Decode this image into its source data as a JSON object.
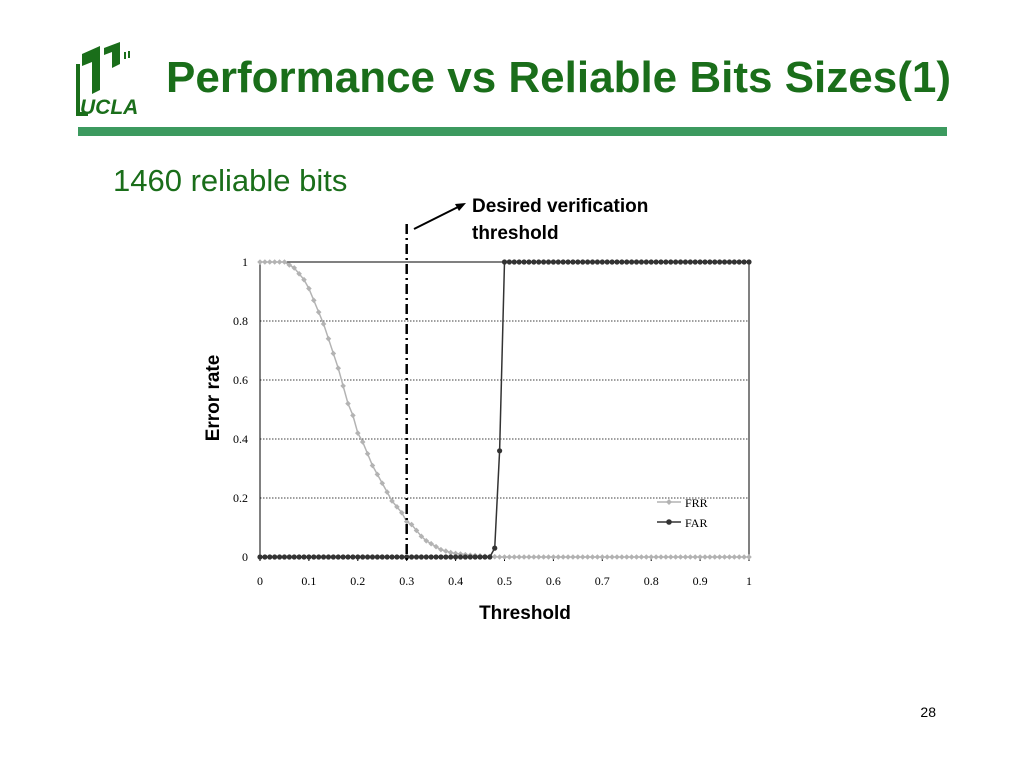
{
  "slide": {
    "title": "Performance vs Reliable Bits Sizes(1)",
    "subtitle": "1460 reliable bits",
    "page_number": "28",
    "logo_text": "UCLA",
    "colors": {
      "title": "#1a6e1a",
      "rule": "#3c9a5f",
      "logo": "#1a6e1a",
      "frr": "#b3b3b3",
      "far": "#333333"
    }
  },
  "chart_data": {
    "type": "line",
    "xlabel": "Threshold",
    "ylabel": "Error rate",
    "xlim": [
      0,
      1
    ],
    "ylim": [
      0,
      1
    ],
    "x_ticks": [
      "0",
      "0.1",
      "0.2",
      "0.3",
      "0.4",
      "0.5",
      "0.6",
      "0.7",
      "0.8",
      "0.9",
      "1"
    ],
    "y_ticks": [
      "0",
      "0.2",
      "0.4",
      "0.6",
      "0.8",
      "1"
    ],
    "grid": "horizontal dotted",
    "legend_position": "bottom-right",
    "annotation": {
      "text_lines": [
        "Desired verification",
        "threshold"
      ],
      "x": 0.3,
      "style": "dash-dot vertical line with arrow"
    },
    "x": [
      0,
      0.01,
      0.02,
      0.03,
      0.04,
      0.05,
      0.06,
      0.07,
      0.08,
      0.09,
      0.1,
      0.11,
      0.12,
      0.13,
      0.14,
      0.15,
      0.16,
      0.17,
      0.18,
      0.19,
      0.2,
      0.21,
      0.22,
      0.23,
      0.24,
      0.25,
      0.26,
      0.27,
      0.28,
      0.29,
      0.3,
      0.31,
      0.32,
      0.33,
      0.34,
      0.35,
      0.36,
      0.37,
      0.38,
      0.39,
      0.4,
      0.41,
      0.42,
      0.43,
      0.44,
      0.45,
      0.46,
      0.47,
      0.48,
      0.49,
      0.5,
      0.51,
      0.52,
      0.53,
      0.54,
      0.55,
      0.56,
      0.57,
      0.58,
      0.59,
      0.6,
      0.61,
      0.62,
      0.63,
      0.64,
      0.65,
      0.66,
      0.67,
      0.68,
      0.69,
      0.7,
      0.71,
      0.72,
      0.73,
      0.74,
      0.75,
      0.76,
      0.77,
      0.78,
      0.79,
      0.8,
      0.81,
      0.82,
      0.83,
      0.84,
      0.85,
      0.86,
      0.87,
      0.88,
      0.89,
      0.9,
      0.91,
      0.92,
      0.93,
      0.94,
      0.95,
      0.96,
      0.97,
      0.98,
      0.99,
      1
    ],
    "series": [
      {
        "name": "FRR",
        "color": "#b3b3b3",
        "marker": "diamond",
        "values": [
          1,
          1,
          1,
          1,
          1,
          1,
          0.99,
          0.98,
          0.96,
          0.94,
          0.91,
          0.87,
          0.83,
          0.79,
          0.74,
          0.69,
          0.64,
          0.58,
          0.52,
          0.48,
          0.42,
          0.39,
          0.35,
          0.31,
          0.28,
          0.25,
          0.22,
          0.19,
          0.17,
          0.15,
          0.12,
          0.11,
          0.09,
          0.07,
          0.055,
          0.045,
          0.035,
          0.025,
          0.02,
          0.015,
          0.012,
          0.01,
          0.008,
          0.006,
          0.005,
          0.004,
          0.003,
          0.002,
          0.001,
          0,
          0,
          0,
          0,
          0,
          0,
          0,
          0,
          0,
          0,
          0,
          0,
          0,
          0,
          0,
          0,
          0,
          0,
          0,
          0,
          0,
          0,
          0,
          0,
          0,
          0,
          0,
          0,
          0,
          0,
          0,
          0,
          0,
          0,
          0,
          0,
          0,
          0,
          0,
          0,
          0,
          0,
          0,
          0,
          0,
          0,
          0,
          0,
          0,
          0,
          0,
          0
        ]
      },
      {
        "name": "FAR",
        "color": "#333333",
        "marker": "circle",
        "values": [
          0,
          0,
          0,
          0,
          0,
          0,
          0,
          0,
          0,
          0,
          0,
          0,
          0,
          0,
          0,
          0,
          0,
          0,
          0,
          0,
          0,
          0,
          0,
          0,
          0,
          0,
          0,
          0,
          0,
          0,
          0,
          0,
          0,
          0,
          0,
          0,
          0,
          0,
          0,
          0,
          0,
          0,
          0,
          0,
          0,
          0,
          0,
          0,
          0.03,
          0.36,
          1,
          1,
          1,
          1,
          1,
          1,
          1,
          1,
          1,
          1,
          1,
          1,
          1,
          1,
          1,
          1,
          1,
          1,
          1,
          1,
          1,
          1,
          1,
          1,
          1,
          1,
          1,
          1,
          1,
          1,
          1,
          1,
          1,
          1,
          1,
          1,
          1,
          1,
          1,
          1,
          1,
          1,
          1,
          1,
          1,
          1,
          1,
          1,
          1,
          1,
          1
        ]
      }
    ]
  }
}
